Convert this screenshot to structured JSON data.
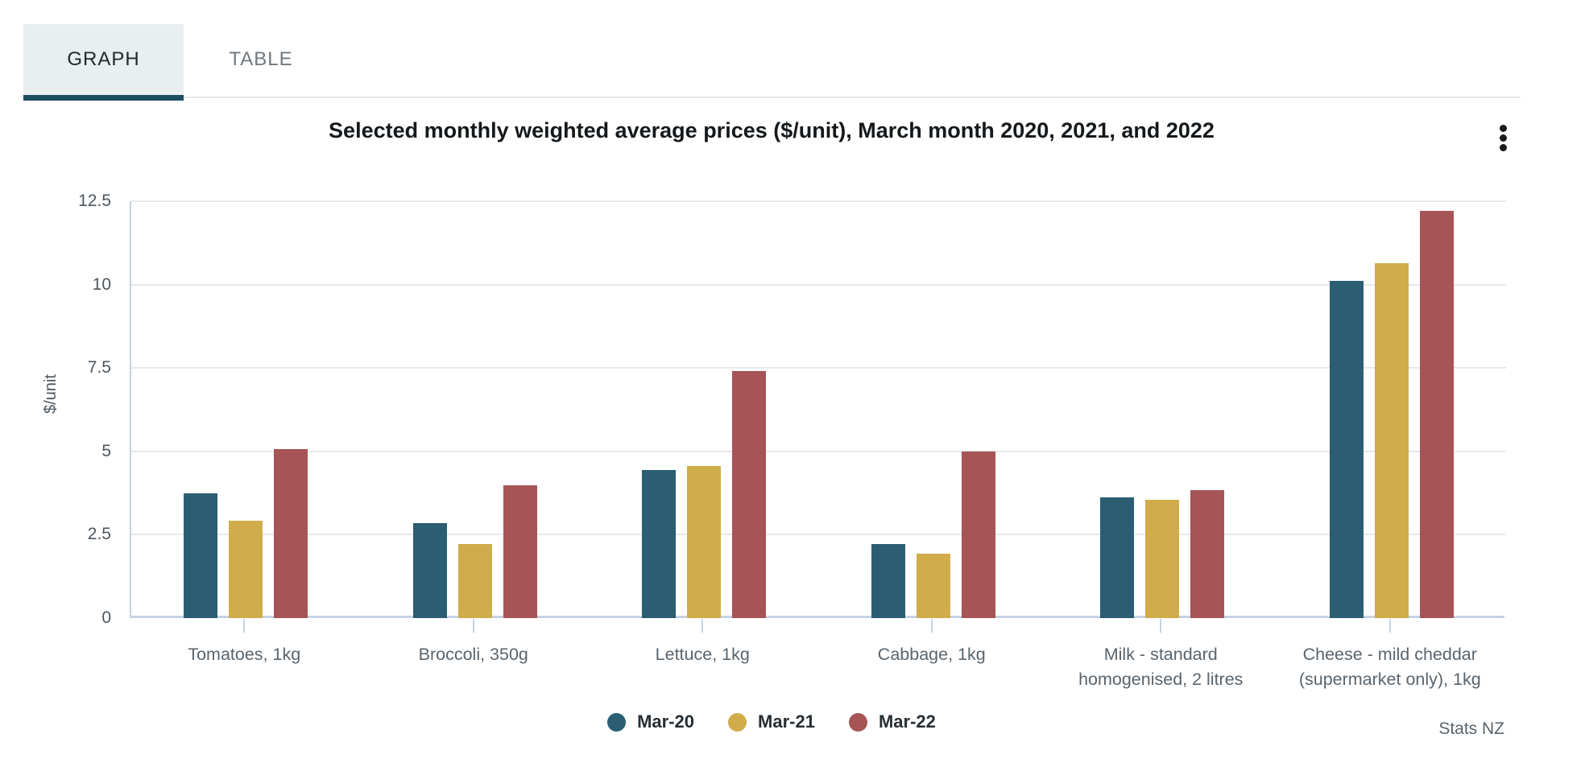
{
  "tabs": [
    {
      "label": "GRAPH",
      "active": true
    },
    {
      "label": "TABLE",
      "active": false
    }
  ],
  "menu": {
    "icon": "kebab-menu-icon"
  },
  "colors": {
    "active_tab_underline": "#1d4d62",
    "active_tab_background": "#e9eef0",
    "gridline": "#e7e8ea",
    "axis_line": "#c7d1e4"
  },
  "chart_data": {
    "type": "bar",
    "title": "Selected monthly weighted average prices ($/unit), March month 2020, 2021, and 2022",
    "xlabel": "",
    "ylabel": "$/unit",
    "ylim": [
      0,
      12.5
    ],
    "yticks": [
      "0",
      "2.5",
      "5",
      "7.5",
      "10",
      "12.5"
    ],
    "grid": true,
    "legend_position": "bottom-center",
    "categories": [
      "Tomatoes, 1kg",
      "Broccoli, 350g",
      "Lettuce, 1kg",
      "Cabbage, 1kg",
      "Milk - standard\nhomogenised, 2 litres",
      "Cheese - mild cheddar\n(supermarket only), 1kg"
    ],
    "series": [
      {
        "name": "Mar-20",
        "color": "#2b5e73",
        "values": [
          3.75,
          2.86,
          4.44,
          2.22,
          3.62,
          10.12
        ]
      },
      {
        "name": "Mar-21",
        "color": "#d0ac4a",
        "values": [
          2.93,
          2.21,
          4.56,
          1.93,
          3.56,
          10.64
        ]
      },
      {
        "name": "Mar-22",
        "color": "#a65456",
        "values": [
          5.08,
          3.98,
          7.42,
          4.99,
          3.85,
          12.22
        ]
      }
    ],
    "source": "Stats NZ"
  }
}
